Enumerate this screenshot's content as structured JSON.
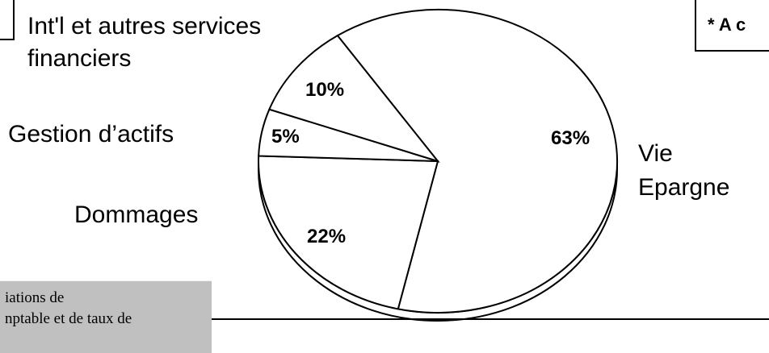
{
  "chart_data": {
    "type": "pie",
    "title": "",
    "slices": [
      {
        "label": "Vie\nEpargne",
        "value": 63,
        "value_label": "63%"
      },
      {
        "label": "Dommages",
        "value": 22,
        "value_label": "22%"
      },
      {
        "label": "Gestion d’actifs",
        "value": 5,
        "value_label": "5%"
      },
      {
        "label": "Int'l et autres services\nfinanciers",
        "value": 10,
        "value_label": "10%"
      }
    ],
    "style": "3d-tilted",
    "fill": "#ffffff",
    "stroke": "#000000"
  },
  "labels": {
    "intl_line1": "Int'l et autres services",
    "intl_line2": "financiers",
    "gestion": "Gestion d’actifs",
    "dommages": "Dommages",
    "vie_line1": "Vie",
    "vie_line2": "Epargne"
  },
  "percents": {
    "intl": "10%",
    "gestion": "5%",
    "dommages": "22%",
    "vie": "63%"
  },
  "note_right": "* A c",
  "note_bottom": {
    "line1": "iations de",
    "line2": "nptable et de taux de"
  }
}
